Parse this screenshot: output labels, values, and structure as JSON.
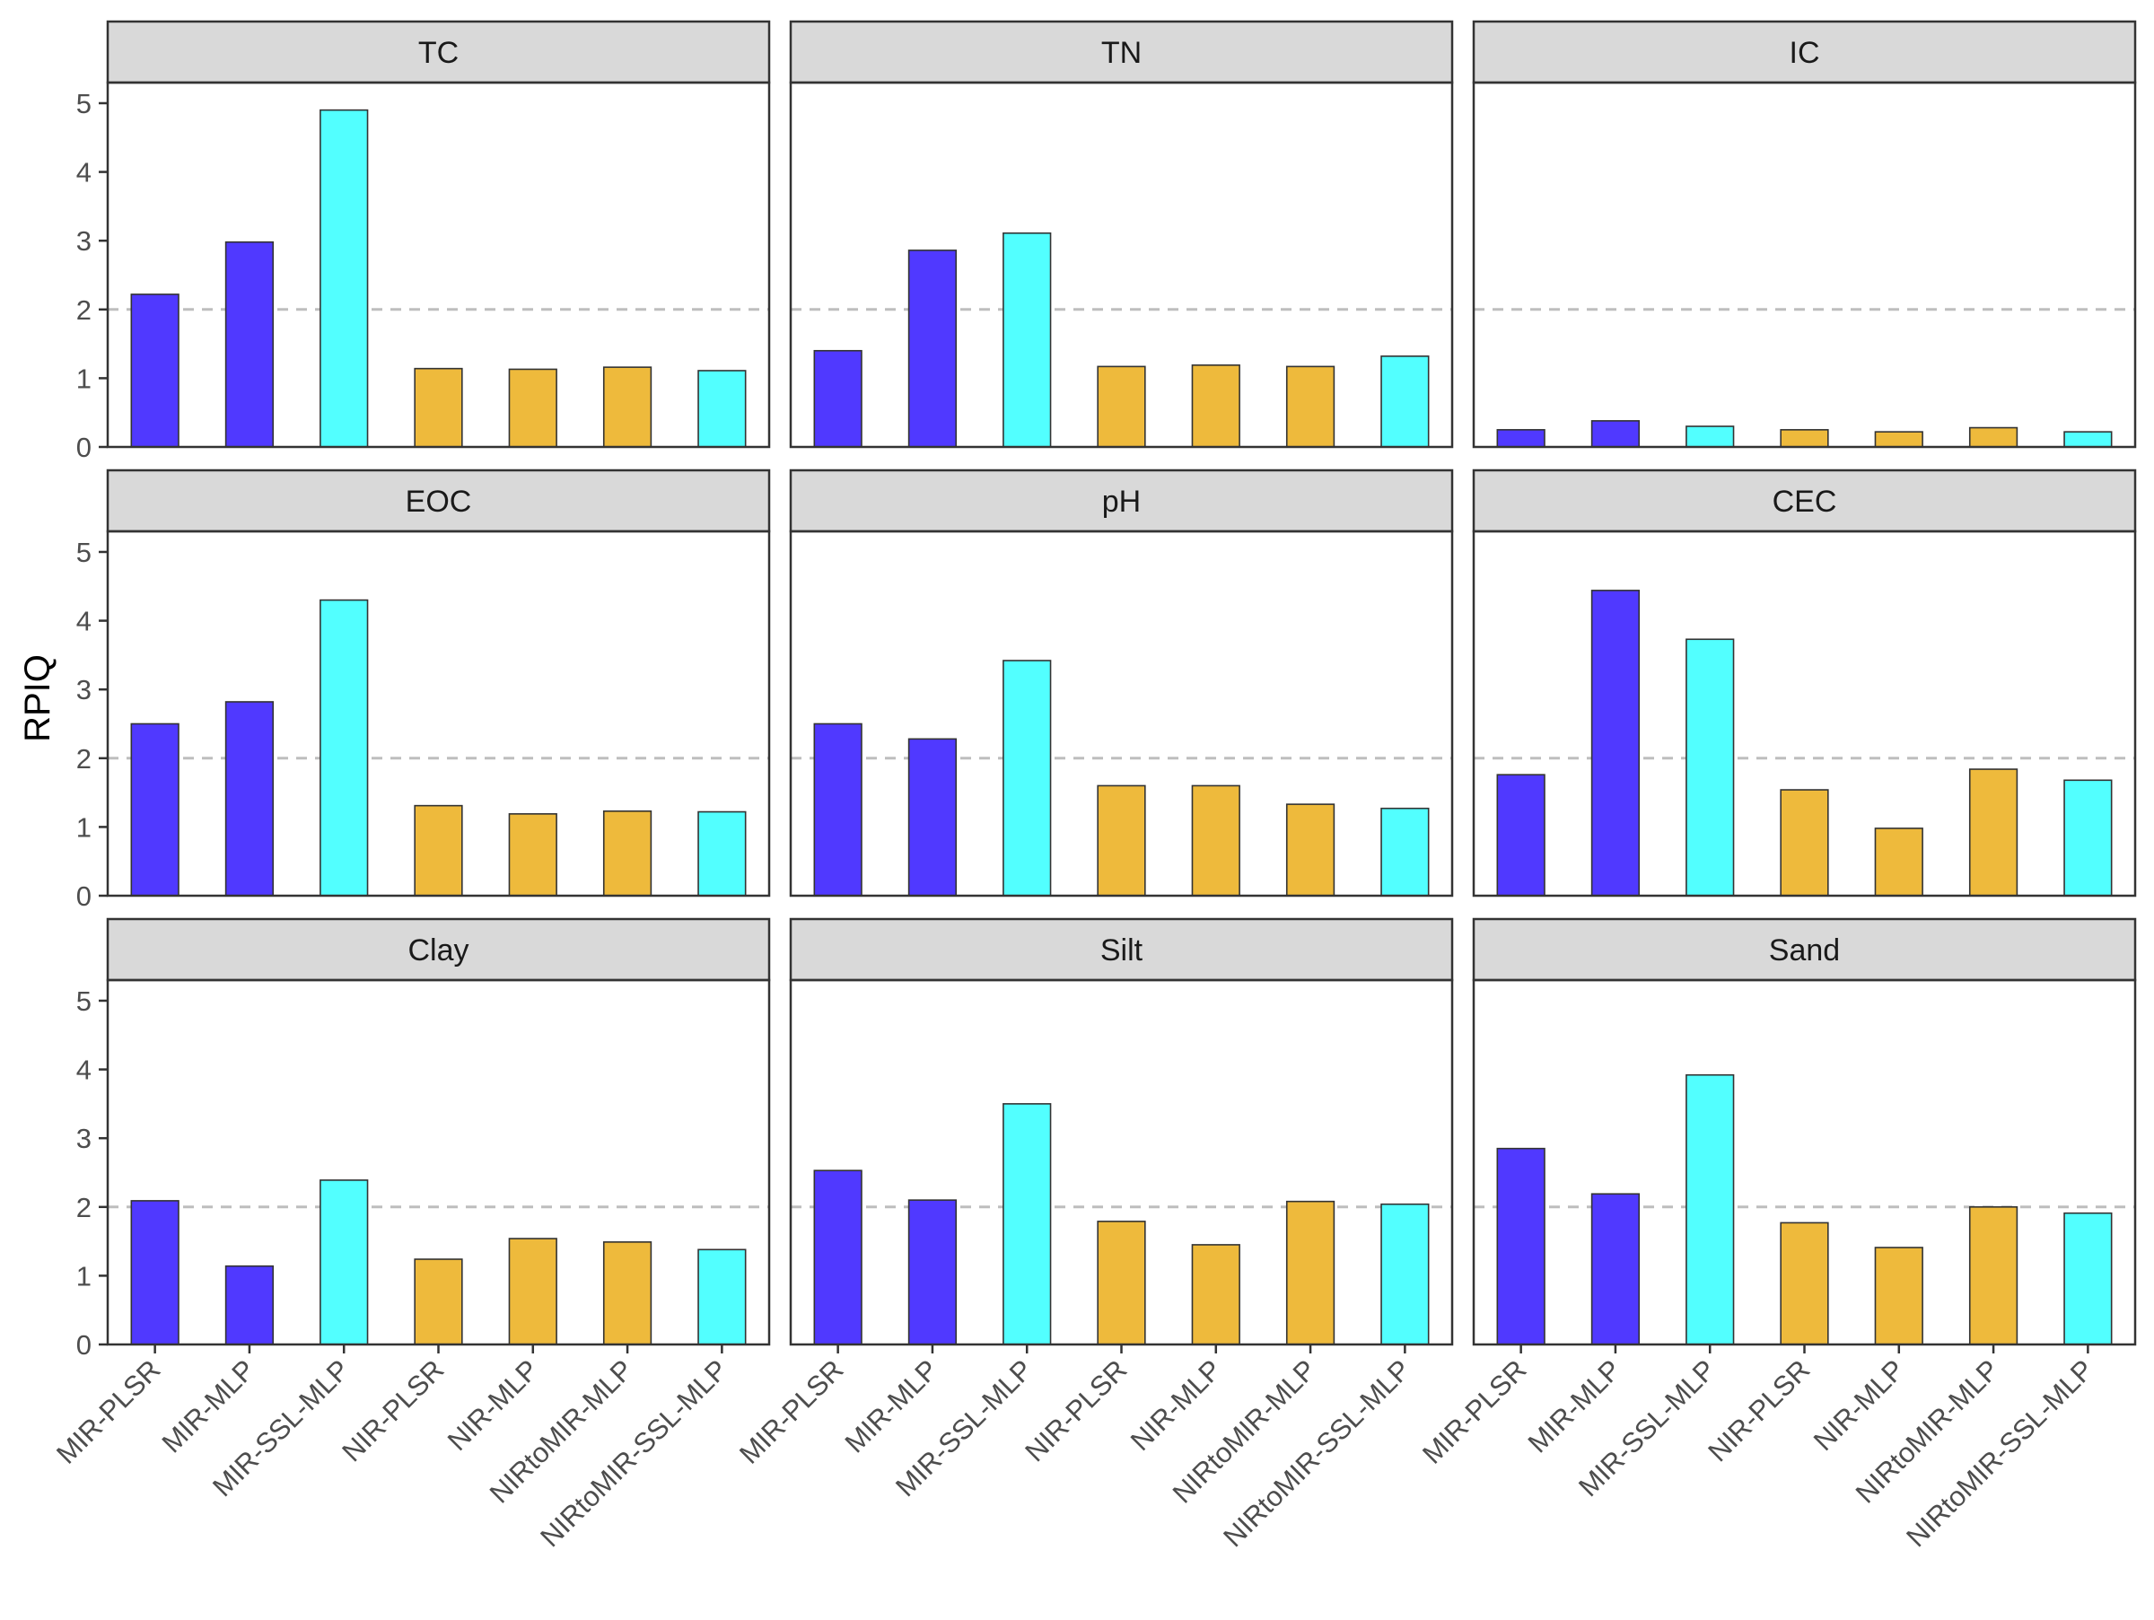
{
  "chart_data": {
    "type": "bar",
    "layout": "facet-grid 3x3",
    "ylabel": "RPIQ",
    "xlabel": "",
    "ylim": [
      0,
      5.3
    ],
    "yticks": [
      0,
      1,
      2,
      3,
      4,
      5
    ],
    "reference_line": {
      "y": 2,
      "style": "dashed",
      "color": "#bebebe"
    },
    "grid": false,
    "legend": "none",
    "categories": [
      "MIR-PLSR",
      "MIR-MLP",
      "MIR-SSL-MLP",
      "NIR-PLSR",
      "NIR-MLP",
      "NIRtoMIR-MLP",
      "NIRtoMIR-SSL-MLP"
    ],
    "bar_colors": [
      "#5039FF",
      "#5039FF",
      "#52FFFF",
      "#EEBA3C",
      "#EEBA3C",
      "#EEBA3C",
      "#52FFFF"
    ],
    "panels": [
      {
        "title": "TC",
        "values": [
          2.22,
          2.98,
          4.9,
          1.14,
          1.13,
          1.16,
          1.11
        ]
      },
      {
        "title": "TN",
        "values": [
          1.4,
          2.86,
          3.11,
          1.17,
          1.19,
          1.17,
          1.32
        ]
      },
      {
        "title": "IC",
        "values": [
          0.25,
          0.38,
          0.3,
          0.25,
          0.22,
          0.28,
          0.22
        ]
      },
      {
        "title": "EOC",
        "values": [
          2.5,
          2.82,
          4.3,
          1.31,
          1.19,
          1.23,
          1.22
        ]
      },
      {
        "title": "pH",
        "values": [
          2.5,
          2.28,
          3.42,
          1.6,
          1.6,
          1.33,
          1.27
        ]
      },
      {
        "title": "CEC",
        "values": [
          1.76,
          4.44,
          3.73,
          1.54,
          0.98,
          1.84,
          1.68
        ]
      },
      {
        "title": "Clay",
        "values": [
          2.09,
          1.14,
          2.39,
          1.24,
          1.54,
          1.49,
          1.38
        ]
      },
      {
        "title": "Silt",
        "values": [
          2.53,
          2.1,
          3.5,
          1.79,
          1.45,
          2.08,
          2.04
        ]
      },
      {
        "title": "Sand",
        "values": [
          2.85,
          2.19,
          3.92,
          1.77,
          1.41,
          2.0,
          1.91
        ]
      }
    ]
  }
}
